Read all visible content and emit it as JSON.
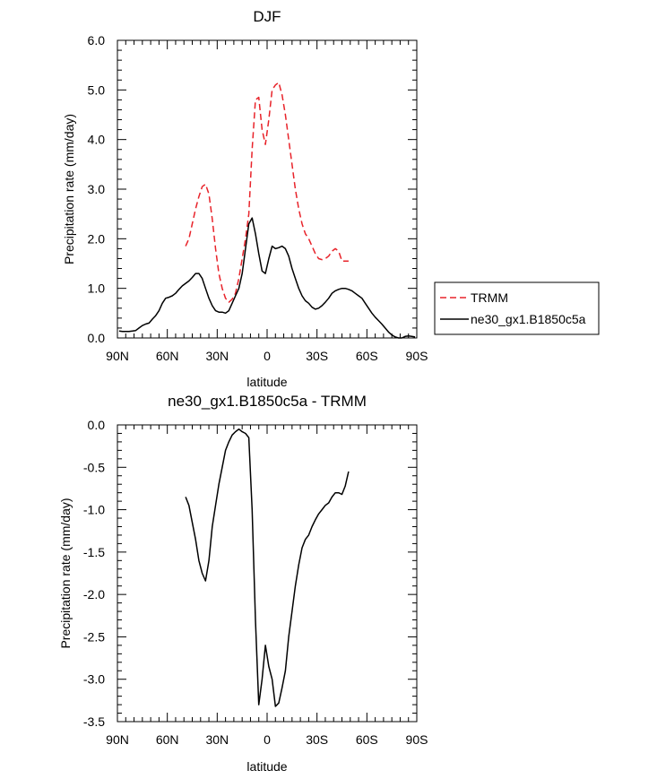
{
  "chart_data": [
    {
      "type": "line",
      "title": "DJF",
      "xlabel": "latitude",
      "ylabel": "Precipitation rate (mm/day)",
      "xlim": [
        -90,
        90
      ],
      "ylim": [
        0,
        6
      ],
      "x_ticks": [
        {
          "value": -90,
          "label": "90N"
        },
        {
          "value": -60,
          "label": "60N"
        },
        {
          "value": -30,
          "label": "30N"
        },
        {
          "value": 0,
          "label": "0"
        },
        {
          "value": 30,
          "label": "30S"
        },
        {
          "value": 60,
          "label": "60S"
        },
        {
          "value": 90,
          "label": "90S"
        }
      ],
      "y_ticks": [
        {
          "value": 0,
          "label": "0.0"
        },
        {
          "value": 1,
          "label": "1.0"
        },
        {
          "value": 2,
          "label": "2.0"
        },
        {
          "value": 3,
          "label": "3.0"
        },
        {
          "value": 4,
          "label": "4.0"
        },
        {
          "value": 5,
          "label": "5.0"
        },
        {
          "value": 6,
          "label": "6.0"
        }
      ],
      "legend": {
        "placement": "right"
      },
      "series": [
        {
          "name": "TRMM",
          "color": "#e8232a",
          "dash": true,
          "x": [
            -49,
            -47,
            -45,
            -43,
            -41,
            -39,
            -37,
            -35,
            -33,
            -31,
            -29,
            -27,
            -25,
            -23,
            -21,
            -19,
            -17,
            -15,
            -13,
            -11,
            -9,
            -7,
            -5,
            -3,
            -1,
            1,
            3,
            5,
            7,
            9,
            11,
            13,
            15,
            17,
            19,
            21,
            23,
            25,
            27,
            29,
            31,
            33,
            35,
            37,
            39,
            41,
            43,
            45,
            47,
            49
          ],
          "y": [
            1.85,
            2.0,
            2.3,
            2.6,
            2.85,
            3.05,
            3.1,
            2.9,
            2.4,
            1.8,
            1.3,
            1.0,
            0.8,
            0.72,
            0.78,
            0.9,
            1.2,
            1.6,
            2.0,
            2.5,
            3.8,
            4.8,
            4.85,
            4.2,
            3.9,
            4.4,
            5.0,
            5.1,
            5.15,
            4.9,
            4.5,
            4.0,
            3.5,
            3.0,
            2.6,
            2.3,
            2.1,
            2.0,
            1.85,
            1.7,
            1.6,
            1.58,
            1.6,
            1.65,
            1.75,
            1.8,
            1.75,
            1.55,
            1.55,
            1.55
          ]
        },
        {
          "name": "ne30_gx1.B1850c5a",
          "color": "#000000",
          "dash": false,
          "x": [
            -89,
            -87,
            -85,
            -83,
            -81,
            -79,
            -77,
            -75,
            -73,
            -71,
            -69,
            -67,
            -65,
            -63,
            -61,
            -59,
            -57,
            -55,
            -53,
            -51,
            -49,
            -47,
            -45,
            -43,
            -41,
            -39,
            -37,
            -35,
            -33,
            -31,
            -29,
            -27,
            -25,
            -23,
            -21,
            -19,
            -17,
            -15,
            -13,
            -11,
            -9,
            -7,
            -5,
            -3,
            -1,
            1,
            3,
            5,
            7,
            9,
            11,
            13,
            15,
            17,
            19,
            21,
            23,
            25,
            27,
            29,
            31,
            33,
            35,
            37,
            39,
            41,
            43,
            45,
            47,
            49,
            51,
            53,
            55,
            57,
            59,
            61,
            63,
            65,
            67,
            69,
            71,
            73,
            75,
            77,
            79,
            81,
            83,
            85,
            87,
            89
          ],
          "y": [
            0.14,
            0.13,
            0.13,
            0.13,
            0.14,
            0.15,
            0.2,
            0.25,
            0.28,
            0.3,
            0.38,
            0.45,
            0.55,
            0.7,
            0.8,
            0.82,
            0.85,
            0.9,
            0.98,
            1.05,
            1.1,
            1.15,
            1.22,
            1.3,
            1.3,
            1.2,
            1.0,
            0.8,
            0.65,
            0.55,
            0.52,
            0.52,
            0.5,
            0.55,
            0.7,
            0.85,
            1.0,
            1.3,
            1.8,
            2.3,
            2.42,
            2.1,
            1.7,
            1.35,
            1.3,
            1.6,
            1.85,
            1.8,
            1.82,
            1.85,
            1.8,
            1.65,
            1.4,
            1.2,
            1.0,
            0.85,
            0.75,
            0.7,
            0.62,
            0.58,
            0.6,
            0.65,
            0.72,
            0.8,
            0.9,
            0.95,
            0.98,
            1.0,
            1.0,
            0.98,
            0.95,
            0.9,
            0.85,
            0.8,
            0.7,
            0.6,
            0.5,
            0.42,
            0.35,
            0.28,
            0.2,
            0.12,
            0.06,
            0.02,
            0.0,
            0.0,
            0.03,
            0.04,
            0.03,
            0.02
          ]
        }
      ]
    },
    {
      "type": "line",
      "title": "ne30_gx1.B1850c5a - TRMM",
      "xlabel": "latitude",
      "ylabel": "Precipitation rate (mm/day)",
      "xlim": [
        -90,
        90
      ],
      "ylim": [
        -3.5,
        0
      ],
      "x_ticks": [
        {
          "value": -90,
          "label": "90N"
        },
        {
          "value": -60,
          "label": "60N"
        },
        {
          "value": -30,
          "label": "30N"
        },
        {
          "value": 0,
          "label": "0"
        },
        {
          "value": 30,
          "label": "30S"
        },
        {
          "value": 60,
          "label": "60S"
        },
        {
          "value": 90,
          "label": "90S"
        }
      ],
      "y_ticks": [
        {
          "value": 0,
          "label": "0.0"
        },
        {
          "value": -0.5,
          "label": "-0.5"
        },
        {
          "value": -1,
          "label": "-1.0"
        },
        {
          "value": -1.5,
          "label": "-1.5"
        },
        {
          "value": -2,
          "label": "-2.0"
        },
        {
          "value": -2.5,
          "label": "-2.5"
        },
        {
          "value": -3,
          "label": "-3.0"
        },
        {
          "value": -3.5,
          "label": "-3.5"
        }
      ],
      "series": [
        {
          "name": "ne30_gx1.B1850c5a - TRMM",
          "color": "#000000",
          "dash": false,
          "x": [
            -49,
            -47,
            -45,
            -43,
            -41,
            -39,
            -37,
            -35,
            -33,
            -31,
            -29,
            -27,
            -25,
            -23,
            -21,
            -19,
            -17,
            -15,
            -13,
            -11,
            -9,
            -7,
            -5,
            -3,
            -1,
            1,
            3,
            5,
            7,
            9,
            11,
            13,
            15,
            17,
            19,
            21,
            23,
            25,
            27,
            29,
            31,
            33,
            35,
            37,
            39,
            41,
            43,
            45,
            47,
            49
          ],
          "y": [
            -0.85,
            -0.95,
            -1.15,
            -1.35,
            -1.6,
            -1.75,
            -1.84,
            -1.6,
            -1.2,
            -0.95,
            -0.7,
            -0.5,
            -0.3,
            -0.2,
            -0.12,
            -0.08,
            -0.05,
            -0.08,
            -0.1,
            -0.15,
            -1.0,
            -2.3,
            -3.3,
            -3.0,
            -2.6,
            -2.85,
            -3.0,
            -3.32,
            -3.28,
            -3.1,
            -2.9,
            -2.5,
            -2.2,
            -1.9,
            -1.65,
            -1.45,
            -1.35,
            -1.3,
            -1.2,
            -1.12,
            -1.05,
            -1.0,
            -0.95,
            -0.92,
            -0.85,
            -0.8,
            -0.8,
            -0.82,
            -0.72,
            -0.55
          ]
        }
      ]
    }
  ]
}
